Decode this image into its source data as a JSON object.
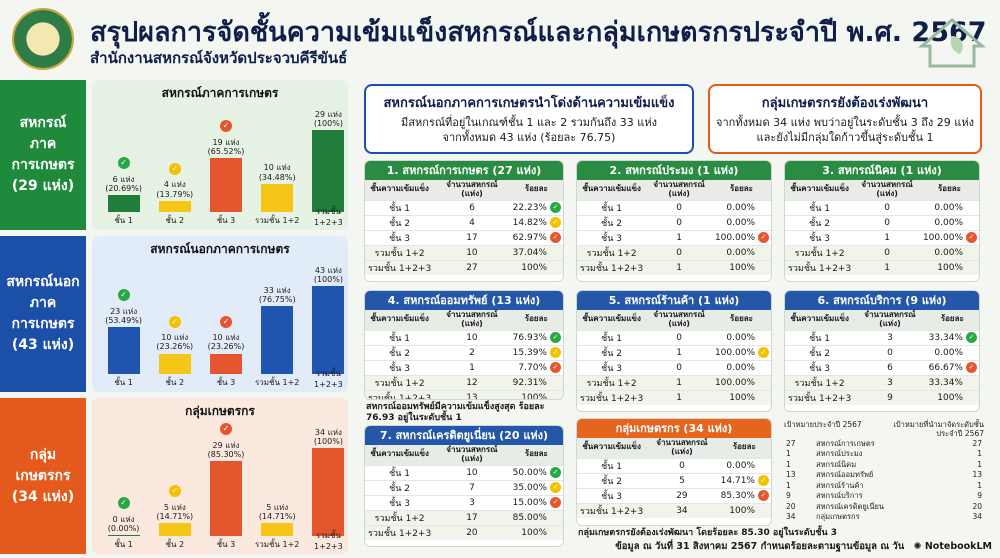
{
  "header": {
    "title": "สรุปผลการจัดชั้นความเข้มแข็งสหกรณ์และกลุ่มเกษตรกรประจำปี พ.ศ. 2567",
    "subtitle": "สำนักงานสหกรณ์จังหวัดประจวบคีรีขันธ์"
  },
  "colors": {
    "green": "#1f8a3c",
    "blue": "#1b4fa8",
    "orange": "#e35a1c",
    "bar_green": "#237d3a",
    "bar_yellow": "#f5c518",
    "bar_red": "#e4572e",
    "bar_blue": "#1f55b0"
  },
  "chart_data": [
    {
      "type": "bar",
      "title": "สหกรณ์ภาคการเกษตร",
      "categories": [
        "ชั้น 1",
        "ชั้น 2",
        "ชั้น 3",
        "รวมชั้น 1+2",
        "รวมชั้น 1+2+3"
      ],
      "values": [
        6,
        4,
        19,
        10,
        29
      ],
      "labels": [
        "6 แห่ง\n(20.69%)",
        "4 แห่ง\n(13.79%)",
        "19 แห่ง\n(65.52%)",
        "10 แห่ง\n(34.48%)",
        "29 แห่ง\n(100%)"
      ],
      "ylim": [
        0,
        29
      ]
    },
    {
      "type": "bar",
      "title": "สหกรณ์นอกภาคการเกษตร",
      "categories": [
        "ชั้น 1",
        "ชั้น 2",
        "ชั้น 3",
        "รวมชั้น 1+2",
        "รวมชั้น 1+2+3"
      ],
      "values": [
        23,
        10,
        10,
        33,
        43
      ],
      "labels": [
        "23 แห่ง\n(53.49%)",
        "10 แห่ง\n(23.26%)",
        "10 แห่ง\n(23.26%)",
        "33 แห่ง\n(76.75%)",
        "43 แห่ง\n(100%)"
      ],
      "ylim": [
        0,
        43
      ]
    },
    {
      "type": "bar",
      "title": "กลุ่มเกษตรกร",
      "categories": [
        "ชั้น 1",
        "ชั้น 2",
        "ชั้น 3",
        "รวมชั้น 1+2",
        "รวมชั้น 1+2+3"
      ],
      "values": [
        0,
        5,
        29,
        5,
        34
      ],
      "labels": [
        "0 แห่ง\n(0.00%)",
        "5 แห่ง\n(14.71%)",
        "29 แห่ง\n(85.30%)",
        "5 แห่ง\n(14.71%)",
        "34 แห่ง\n(100%)"
      ],
      "ylim": [
        0,
        34
      ]
    }
  ],
  "sections": [
    {
      "label": "สหกรณ์\nภาคการเกษตร\n(29 แห่ง)"
    },
    {
      "label": "สหกรณ์นอก\nภาคการเกษตร\n(43 แห่ง)"
    },
    {
      "label": "กลุ่มเกษตรกร\n(34 แห่ง)"
    }
  ],
  "highlight_blue": {
    "title": "สหกรณ์นอกภาคการเกษตรนำโด่งด้านความเข้มแข็ง",
    "line1": "มีสหกรณ์ที่อยู่ในเกณฑ์ชั้น 1 และ 2 รวมกันถึง 33 แห่ง",
    "line2": "จากทั้งหมด 43 แห่ง (ร้อยละ 76.75)"
  },
  "highlight_orange": {
    "title": "กลุ่มเกษตรกรยังต้องเร่งพัฒนา",
    "line1": "จากทั้งหมด 34 แห่ง พบว่าอยู่ในระดับชั้น 3 ถึง 29 แห่ง",
    "line2": "และยังไม่มีกลุ่มใดก้าวขึ้นสู่ระดับชั้น 1"
  },
  "table_cols": [
    "ชั้นความเข้มแข็ง",
    "จำนวนสหกรณ์ (แห่ง)",
    "ร้อยละ"
  ],
  "table_cols_group": [
    "ชั้นความเข้มแข็ง",
    "จำนวนสหกรณ์ (แห่ง)",
    "ร้อยละ"
  ],
  "tables": [
    {
      "title": "1. สหกรณ์การเกษตร (27 แห่ง)",
      "rows": [
        [
          "ชั้น 1",
          "6",
          "22.23%",
          "g"
        ],
        [
          "ชั้น 2",
          "4",
          "14.82%",
          "y"
        ],
        [
          "ชั้น 3",
          "17",
          "62.97%",
          "r"
        ],
        [
          "รวมชั้น 1+2",
          "10",
          "37.04%",
          ""
        ],
        [
          "รวมชั้น 1+2+3",
          "27",
          "100%",
          ""
        ]
      ]
    },
    {
      "title": "2. สหกรณ์ประมง (1 แห่ง)",
      "rows": [
        [
          "ชั้น 1",
          "0",
          "0.00%",
          ""
        ],
        [
          "ชั้น 2",
          "0",
          "0.00%",
          ""
        ],
        [
          "ชั้น 3",
          "1",
          "100.00%",
          "r"
        ],
        [
          "รวมชั้น 1+2",
          "0",
          "0.00%",
          ""
        ],
        [
          "รวมชั้น 1+2+3",
          "1",
          "100%",
          ""
        ]
      ]
    },
    {
      "title": "3. สหกรณ์นิคม (1 แห่ง)",
      "rows": [
        [
          "ชั้น 1",
          "0",
          "0.00%",
          ""
        ],
        [
          "ชั้น 2",
          "0",
          "0.00%",
          ""
        ],
        [
          "ชั้น 3",
          "1",
          "100.00%",
          "r"
        ],
        [
          "รวมชั้น 1+2",
          "0",
          "0.00%",
          ""
        ],
        [
          "รวมชั้น 1+2+3",
          "1",
          "100%",
          ""
        ]
      ]
    },
    {
      "title": "4. สหกรณ์ออมทรัพย์ (13 แห่ง)",
      "rows": [
        [
          "ชั้น 1",
          "10",
          "76.93%",
          "g"
        ],
        [
          "ชั้น 2",
          "2",
          "15.39%",
          "y"
        ],
        [
          "ชั้น 3",
          "1",
          "7.70%",
          "r"
        ],
        [
          "รวมชั้น 1+2",
          "12",
          "92.31%",
          ""
        ],
        [
          "รวมชั้น 1+2+3",
          "13",
          "100%",
          ""
        ]
      ]
    },
    {
      "title": "5. สหกรณ์ร้านค้า (1 แห่ง)",
      "rows": [
        [
          "ชั้น 1",
          "0",
          "0.00%",
          ""
        ],
        [
          "ชั้น 2",
          "1",
          "100.00%",
          "y"
        ],
        [
          "ชั้น 3",
          "0",
          "0.00%",
          ""
        ],
        [
          "รวมชั้น 1+2",
          "1",
          "100.00%",
          ""
        ],
        [
          "รวมชั้น 1+2+3",
          "1",
          "100%",
          ""
        ]
      ]
    },
    {
      "title": "6. สหกรณ์บริการ (9 แห่ง)",
      "rows": [
        [
          "ชั้น 1",
          "3",
          "33.34%",
          "g"
        ],
        [
          "ชั้น 2",
          "0",
          "0.00%",
          ""
        ],
        [
          "ชั้น 3",
          "6",
          "66.67%",
          "r"
        ],
        [
          "รวมชั้น 1+2",
          "3",
          "33.34%",
          ""
        ],
        [
          "รวมชั้น 1+2+3",
          "9",
          "100%",
          ""
        ]
      ]
    },
    {
      "title": "7. สหกรณ์เครดิตยูเนี่ยน (20 แห่ง)",
      "rows": [
        [
          "ชั้น 1",
          "10",
          "50.00%",
          "g"
        ],
        [
          "ชั้น 2",
          "7",
          "35.00%",
          "y"
        ],
        [
          "ชั้น 3",
          "3",
          "15.00%",
          "r"
        ],
        [
          "รวมชั้น 1+2",
          "17",
          "85.00%",
          ""
        ],
        [
          "รวมชั้น 1+2+3",
          "20",
          "100%",
          ""
        ]
      ]
    },
    {
      "title": "กลุ่มเกษตรกร (34 แห่ง)",
      "rows": [
        [
          "ชั้น 1",
          "0",
          "0.00%",
          ""
        ],
        [
          "ชั้น 2",
          "5",
          "14.71%",
          "y"
        ],
        [
          "ชั้น 3",
          "29",
          "85.30%",
          "r"
        ],
        [
          "รวมชั้น 1+2+3",
          "34",
          "100%",
          ""
        ]
      ]
    }
  ],
  "note_savings": "สหกรณ์ออมทรัพย์มีความเข้มแข็งสูงสุด ร้อยละ 76.93 อยู่ในระดับชั้น 1",
  "note_group": "กลุ่มเกษตรกรยังต้องเร่งพัฒนา โดยร้อยละ 85.30 อยู่ในระดับชั้น 3",
  "goals": {
    "col1": "เป้าหมายประจำปี 2567",
    "col2": "เป้าหมายที่นำมาจัดระดับชั้น ประจำปี 2567",
    "rows": [
      [
        "27",
        "สหกรณ์การเกษตร",
        "27"
      ],
      [
        "1",
        "สหกรณ์ประมง",
        "1"
      ],
      [
        "1",
        "สหกรณ์นิคม",
        "1"
      ],
      [
        "13",
        "สหกรณ์ออมทรัพย์",
        "13"
      ],
      [
        "1",
        "สหกรณ์ร้านค้า",
        "1"
      ],
      [
        "9",
        "สหกรณ์บริการ",
        "9"
      ],
      [
        "20",
        "สหกรณ์เครดิตยูเนี่ยน",
        "20"
      ],
      [
        "34",
        "กลุ่มเกษตรกร",
        "34"
      ]
    ]
  },
  "footer": "ข้อมูล ณ วันที่ 31 สิงหาคม 2567 กำหนดร้อยละตามฐานข้อมูล ณ วัน",
  "brand": "NotebookLM"
}
